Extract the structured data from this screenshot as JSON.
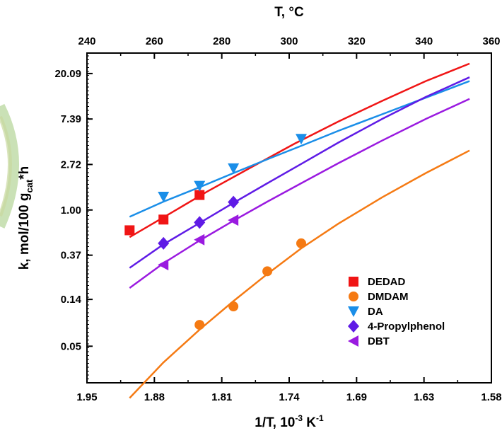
{
  "chart_data": {
    "type": "scatter",
    "title": "",
    "xlabel": "1/T, 10",
    "xlabel_sup": "-3",
    "xlabel_unit": " K",
    "xlabel_unit_sup": "-1",
    "top_axis_label": "T, °C",
    "ylabel": "k, mol/100 g",
    "ylabel_sub": "cat",
    "ylabel_tail": "*h",
    "x_scale": "reversed",
    "y_scale": "log",
    "xlim": [
      1.95,
      1.58
    ],
    "ylim_ln": [
      -3.8,
      3.45
    ],
    "bottom_ticks": [
      "1.95",
      "1.88",
      "1.81",
      "1.74",
      "1.69",
      "1.63",
      "1.58"
    ],
    "top_ticks": [
      "240",
      "260",
      "280",
      "300",
      "320",
      "340",
      "360"
    ],
    "y_ticks": [
      "0.05",
      "0.14",
      "0.37",
      "1.00",
      "2.72",
      "7.39",
      "20.09"
    ],
    "grid": false,
    "legend_position": "bottom-right",
    "series": [
      {
        "name": "DEDAD",
        "marker": "square",
        "color": "#f01515",
        "points": [
          [
            1.911,
            0.64
          ],
          [
            1.88,
            0.81
          ],
          [
            1.847,
            1.39
          ]
        ],
        "fit": [
          [
            1.911,
            0.55
          ],
          [
            1.88,
            0.85
          ],
          [
            1.84,
            1.5
          ],
          [
            1.8,
            2.55
          ],
          [
            1.76,
            4.3
          ],
          [
            1.72,
            7.0
          ],
          [
            1.68,
            11.0
          ],
          [
            1.64,
            17.0
          ],
          [
            1.6,
            25.0
          ]
        ]
      },
      {
        "name": "DMDAM",
        "marker": "circle",
        "color": "#f57a13",
        "points": [
          [
            1.847,
            0.08
          ],
          [
            1.816,
            0.12
          ],
          [
            1.785,
            0.26
          ],
          [
            1.754,
            0.48
          ]
        ],
        "fit": [
          [
            1.911,
            0.016
          ],
          [
            1.88,
            0.035
          ],
          [
            1.847,
            0.072
          ],
          [
            1.816,
            0.135
          ],
          [
            1.785,
            0.245
          ],
          [
            1.754,
            0.43
          ],
          [
            1.72,
            0.74
          ],
          [
            1.68,
            1.32
          ],
          [
            1.64,
            2.25
          ],
          [
            1.6,
            3.7
          ]
        ]
      },
      {
        "name": "DA",
        "marker": "triangle-down",
        "color": "#1a8ee8",
        "points": [
          [
            1.88,
            1.34
          ],
          [
            1.847,
            1.7
          ],
          [
            1.816,
            2.5
          ],
          [
            1.754,
            4.78
          ]
        ],
        "fit": [
          [
            1.911,
            0.86
          ],
          [
            1.88,
            1.2
          ],
          [
            1.847,
            1.65
          ],
          [
            1.816,
            2.25
          ],
          [
            1.785,
            3.05
          ],
          [
            1.754,
            4.1
          ],
          [
            1.72,
            5.7
          ],
          [
            1.68,
            8.2
          ],
          [
            1.64,
            11.8
          ],
          [
            1.6,
            17.0
          ]
        ]
      },
      {
        "name": "4-Propylphenol",
        "marker": "diamond",
        "color": "#5f1be6",
        "points": [
          [
            1.88,
            0.48
          ],
          [
            1.847,
            0.76
          ],
          [
            1.816,
            1.19
          ]
        ],
        "fit": [
          [
            1.911,
            0.28
          ],
          [
            1.88,
            0.47
          ],
          [
            1.847,
            0.75
          ],
          [
            1.816,
            1.17
          ],
          [
            1.785,
            1.8
          ],
          [
            1.754,
            2.75
          ],
          [
            1.72,
            4.4
          ],
          [
            1.68,
            7.4
          ],
          [
            1.64,
            12.0
          ],
          [
            1.6,
            18.5
          ]
        ]
      },
      {
        "name": "DBT",
        "marker": "triangle-left",
        "color": "#9a1ae0",
        "points": [
          [
            1.88,
            0.3
          ],
          [
            1.847,
            0.52
          ],
          [
            1.816,
            0.8
          ]
        ],
        "fit": [
          [
            1.911,
            0.18
          ],
          [
            1.88,
            0.31
          ],
          [
            1.847,
            0.51
          ],
          [
            1.816,
            0.79
          ],
          [
            1.785,
            1.2
          ],
          [
            1.754,
            1.8
          ],
          [
            1.72,
            2.8
          ],
          [
            1.68,
            4.6
          ],
          [
            1.64,
            7.4
          ],
          [
            1.6,
            11.5
          ]
        ]
      }
    ]
  }
}
